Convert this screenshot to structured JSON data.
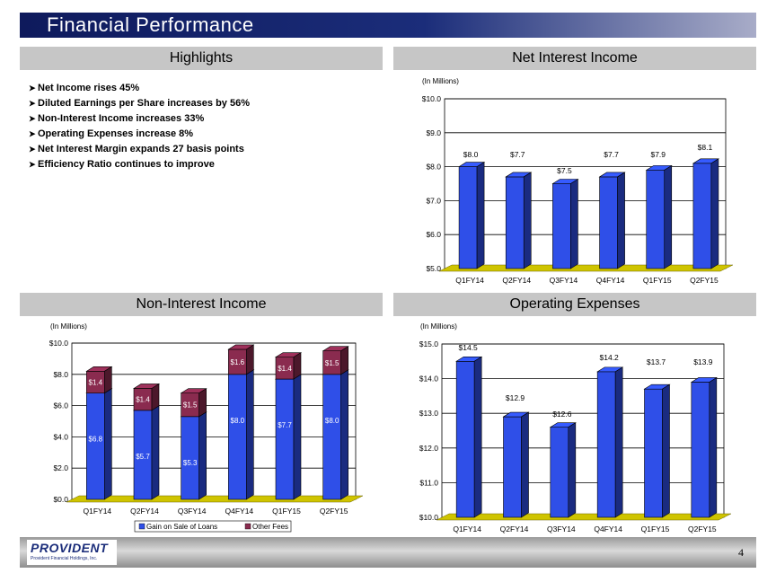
{
  "page": {
    "title": "Financial Performance",
    "page_number": "4"
  },
  "highlights": {
    "header": "Highlights",
    "items": [
      "Net Income rises 45%",
      "Diluted Earnings per Share increases by 56%",
      "Non-Interest Income increases 33%",
      "Operating Expenses increase 8%",
      "Net Interest Margin expands 27 basis points",
      "Efficiency Ratio continues to improve"
    ]
  },
  "footer": {
    "logo_text": "PROVIDENT",
    "logo_subtext": "Provident Financial Holdings, Inc."
  },
  "colors": {
    "bar_blue": "#2f4fe8",
    "bar_maroon": "#8a2b4f",
    "floor_yellow": "#cfc400",
    "title_bar": "#1b2d7a"
  },
  "chart_data": [
    {
      "id": "net-interest-income",
      "type": "bar",
      "title": "Net Interest Income",
      "units_note": "(In Millions)",
      "categories": [
        "Q1FY14",
        "Q2FY14",
        "Q3FY14",
        "Q4FY14",
        "Q1FY15",
        "Q2FY15"
      ],
      "values": [
        8.0,
        7.7,
        7.5,
        7.7,
        7.9,
        8.1
      ],
      "data_labels": [
        "$8.0",
        "$7.7",
        "$7.5",
        "$7.7",
        "$7.9",
        "$8.1"
      ],
      "ylim": [
        5.0,
        10.0
      ],
      "yticks": [
        5.0,
        6.0,
        7.0,
        8.0,
        9.0,
        10.0
      ],
      "ytick_labels": [
        "$5.0",
        "$6.0",
        "$7.0",
        "$8.0",
        "$9.0",
        "$10.0"
      ],
      "grid": true
    },
    {
      "id": "non-interest-income",
      "type": "bar",
      "stacked": true,
      "title": "Non-Interest Income",
      "units_note": "(In Millions)",
      "categories": [
        "Q1FY14",
        "Q2FY14",
        "Q3FY14",
        "Q4FY14",
        "Q1FY15",
        "Q2FY15"
      ],
      "series": [
        {
          "name": "Gain on Sale of Loans",
          "values": [
            6.8,
            5.7,
            5.3,
            8.0,
            7.7,
            8.0
          ],
          "labels": [
            "$6.8",
            "$5.7",
            "$5.3",
            "$8.0",
            "$7.7",
            "$8.0"
          ]
        },
        {
          "name": "Other Fees",
          "values": [
            1.4,
            1.4,
            1.5,
            1.6,
            1.4,
            1.5
          ],
          "labels": [
            "$1.4",
            "$1.4",
            "$1.5",
            "$1.6",
            "$1.4",
            "$1.5"
          ]
        }
      ],
      "ylim": [
        0.0,
        10.0
      ],
      "yticks": [
        0.0,
        2.0,
        4.0,
        6.0,
        8.0,
        10.0
      ],
      "ytick_labels": [
        "$0.0",
        "$2.0",
        "$4.0",
        "$6.0",
        "$8.0",
        "$10.0"
      ],
      "legend": "bottom",
      "grid": true
    },
    {
      "id": "operating-expenses",
      "type": "bar",
      "title": "Operating Expenses",
      "units_note": "(In Millions)",
      "categories": [
        "Q1FY14",
        "Q2FY14",
        "Q3FY14",
        "Q4FY14",
        "Q1FY15",
        "Q2FY15"
      ],
      "values": [
        14.5,
        12.9,
        12.6,
        14.2,
        13.7,
        13.9
      ],
      "data_labels": [
        "$14.5",
        "$12.9",
        "$12.6",
        "$14.2",
        "$13.7",
        "$13.9"
      ],
      "ylim": [
        10.0,
        15.0
      ],
      "yticks": [
        10.0,
        11.0,
        12.0,
        13.0,
        14.0,
        15.0
      ],
      "ytick_labels": [
        "$10.0",
        "$11.0",
        "$12.0",
        "$13.0",
        "$14.0",
        "$15.0"
      ],
      "grid": true
    }
  ]
}
